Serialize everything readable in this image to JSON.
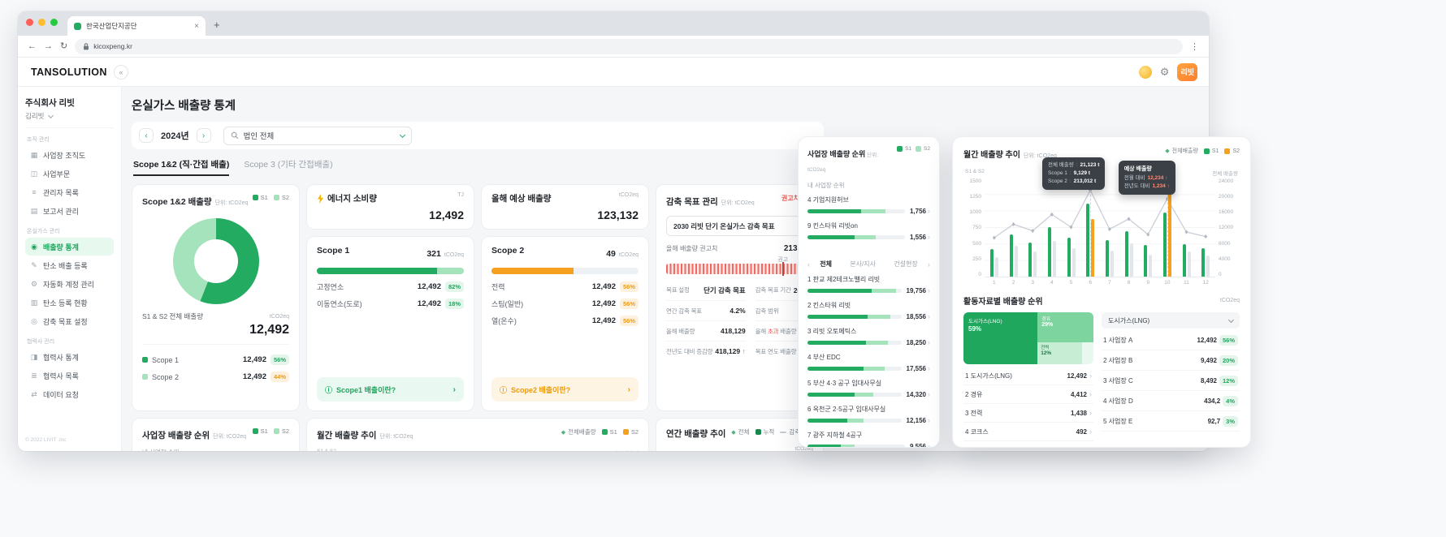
{
  "colors": {
    "green": "#23AC61",
    "green_light": "#A5E3BC",
    "orange": "#F5A01E",
    "red": "#EF564D"
  },
  "legend_labels": {
    "total": "전체배출량",
    "s1": "S1",
    "s2": "S2"
  },
  "browser": {
    "tab_title": "한국산업단지공단",
    "url": "kicoxpeng.kr"
  },
  "header": {
    "logo": "TANSOLUTION",
    "profile_badge": "리빗"
  },
  "sidebar": {
    "company": "주식회사 리빗",
    "user": "김리빗",
    "copyright": "© 2022 LIVIT .Inc",
    "sections": [
      {
        "label": "조직 관리",
        "items": [
          {
            "label": "사업장 조직도",
            "icon": "org-chart-icon",
            "active": false
          },
          {
            "label": "사업부문",
            "icon": "business-division-icon",
            "active": false
          },
          {
            "label": "관리자 목록",
            "icon": "admin-list-icon",
            "active": false
          },
          {
            "label": "보고서 관리",
            "icon": "report-icon",
            "active": false
          }
        ]
      },
      {
        "label": "온실가스 관리",
        "items": [
          {
            "label": "배출량 통계",
            "icon": "stats-chart-icon",
            "active": true
          },
          {
            "label": "탄소 배출 등록",
            "icon": "pencil-icon",
            "active": false
          },
          {
            "label": "자동화 계정 관리",
            "icon": "gear-icon",
            "active": false
          },
          {
            "label": "탄소 등록 현황",
            "icon": "carbon-status-icon",
            "active": false
          },
          {
            "label": "감축 목표 설정",
            "icon": "target-icon",
            "active": false
          }
        ]
      },
      {
        "label": "협력사 관리",
        "items": [
          {
            "label": "협력사 통계",
            "icon": "partner-stats-icon",
            "active": false
          },
          {
            "label": "협력사 목록",
            "icon": "partner-list-icon",
            "active": false
          },
          {
            "label": "데이터 요청",
            "icon": "data-request-icon",
            "active": false
          }
        ]
      }
    ]
  },
  "page": {
    "title": "온실가스 배출량 통계",
    "year": "2024년",
    "filter_value": "법인 전체",
    "tabs": [
      {
        "label": "Scope 1&2 (직·간접 배출)",
        "active": true
      },
      {
        "label": "Scope 3 (기타 간접배출)",
        "active": false
      }
    ]
  },
  "scope12_card": {
    "title": "Scope 1&2 배출량",
    "unit_label": "단위: tCO2eq",
    "total_label": "S1 & S2 전체 배출량",
    "total_unit": "tCO2eq",
    "total_value": "12,492",
    "rows": [
      {
        "label": "Scope 1",
        "value": "12,492",
        "pct": "56%",
        "sq": "g",
        "badge": "bg"
      },
      {
        "label": "Scope 2",
        "value": "12,492",
        "pct": "44%",
        "sq": "gl",
        "badge": "bo"
      }
    ],
    "chart_data": {
      "type": "pie",
      "labels": [
        "Scope 1",
        "Scope 2"
      ],
      "values": [
        56,
        44
      ]
    }
  },
  "energy_card": {
    "title": "에너지 소비량",
    "unit": "TJ",
    "value": "12,492"
  },
  "scope1_card": {
    "title": "Scope 1",
    "value": "321",
    "unit": "tCO2eq",
    "bar": [
      82,
      18
    ],
    "rows": [
      {
        "label": "고정연소",
        "value": "12,492",
        "pct": "82%"
      },
      {
        "label": "이동연소(도로)",
        "value": "12,492",
        "pct": "18%"
      }
    ],
    "info": "Scope1 배출이란?"
  },
  "forecast_card": {
    "title": "올해 예상 배출량",
    "unit": "tCO2eq",
    "value": "123,132"
  },
  "scope2_card": {
    "title": "Scope 2",
    "value": "49",
    "unit": "tCO2eq",
    "bar": 56,
    "rows": [
      {
        "label": "전력",
        "value": "12,492",
        "pct": "56%"
      },
      {
        "label": "스팀(일반)",
        "value": "12,492",
        "pct": "56%"
      },
      {
        "label": "열(온수)",
        "value": "12,492",
        "pct": "56%"
      }
    ],
    "info": "Scope2 배출이란?"
  },
  "target_card": {
    "title": "감축 목표 관리",
    "unit_label": "단위: tCO2eq",
    "alert": "권고치 초과",
    "select_value": "2030 리빗 단기 온실가스 감축 목표",
    "rec_label": "올해 배출량 권고치",
    "rec_value": "213,132",
    "rec_marker": "권고",
    "stats": [
      {
        "label": "목표 설정",
        "value": "단기 감축 목표"
      },
      {
        "label": "감축 목표 기간",
        "value": "2015 - 2050"
      },
      {
        "label": "연간 감축 목표",
        "value": "4.2%"
      },
      {
        "label": "감축 범위",
        "value": "Scope 1"
      },
      {
        "label": "올해 배출량",
        "value": "418,129"
      },
      {
        "label": "올해 초과 배출량",
        "value": "7,351",
        "red_word": "초과"
      },
      {
        "label": "전년도 대비 증감량",
        "value": "418,129",
        "arrow": "↑"
      },
      {
        "label": "목표 연도 배출량",
        "value": "8,129"
      }
    ]
  },
  "bottom_cards": {
    "site_rank": {
      "title": "사업장 배출량 순위",
      "unit_label": "단위: tCO2eq",
      "sub": "내 사업장 순위"
    },
    "monthly": {
      "title": "월간 배출량 추이",
      "unit_label": "단위: tCO2eq",
      "axis_left": "S1 & S2",
      "axis_right": "전체 배출량"
    },
    "yearly": {
      "title": "연간 배출량 추이",
      "legend_a": "전체",
      "legend_b": "누적",
      "legend_c": "감축 목표",
      "unit": "tCO2eq"
    }
  },
  "site_rank_panel": {
    "title": "사업장 배출량 순위",
    "unit_label": "단위: tCO2eq",
    "my_label": "내 사업장 순위",
    "my_items": [
      {
        "rank": "4",
        "name": "기업지원허브",
        "value": "1,756",
        "s1": 55,
        "s2": 25
      },
      {
        "rank": "9",
        "name": "킨스타워 리빗on",
        "value": "1,556",
        "s1": 48,
        "s2": 22
      }
    ],
    "tabs": [
      {
        "label": "전체",
        "active": true
      },
      {
        "label": "본사/지사",
        "active": false
      },
      {
        "label": "건설현장",
        "active": false
      }
    ],
    "items": [
      {
        "rank": "1",
        "name": "판교 제2테크노밸리 리빗",
        "value": "19,756",
        "s1": 68,
        "s2": 26
      },
      {
        "rank": "2",
        "name": "킨스타워 리빗",
        "value": "18,556",
        "s1": 64,
        "s2": 24
      },
      {
        "rank": "3",
        "name": "리빗 오토메틱스",
        "value": "18,250",
        "s1": 62,
        "s2": 24
      },
      {
        "rank": "4",
        "name": "부산 EDC",
        "value": "17,556",
        "s1": 60,
        "s2": 22
      },
      {
        "rank": "5",
        "name": "부산 4·3 공구 임대사무실",
        "value": "14,320",
        "s1": 50,
        "s2": 20
      },
      {
        "rank": "6",
        "name": "옥천군 2·5공구 임대사무실",
        "value": "12,156",
        "s1": 42,
        "s2": 18
      },
      {
        "rank": "7",
        "name": "광주 지하철 4공구",
        "value": "9,556",
        "s1": 34,
        "s2": 14
      },
      {
        "rank": "8",
        "name": "김포 파주도로 4공구 임대사무실",
        "value": "9,326",
        "s1": 32,
        "s2": 13
      }
    ]
  },
  "monthly_panel": {
    "title": "월간 배출량 추이",
    "unit_label": "단위: tCO2eq",
    "axis_left_title": "S1 & S2",
    "axis_right_title": "전체 배출량",
    "tooltip_total": {
      "rows": [
        [
          "전체 배출량",
          "21,123 t"
        ],
        [
          "Scope 1",
          "9,129 t"
        ],
        [
          "Scope 2",
          "213,012 t"
        ]
      ]
    },
    "tooltip_forecast": {
      "title": "예상 배출량",
      "rows": [
        [
          "전월 대비",
          "12,234 ↑"
        ],
        [
          "전년도 대비",
          "1,234 ↑"
        ]
      ]
    },
    "chart_data": {
      "type": "bar+line",
      "x": [
        1,
        2,
        3,
        4,
        5,
        6,
        7,
        8,
        9,
        10,
        11,
        12
      ],
      "series": [
        {
          "name": "S1",
          "color": "#23AC61",
          "values": [
            420,
            640,
            520,
            760,
            600,
            1120,
            560,
            700,
            480,
            980,
            500,
            440
          ]
        },
        {
          "name": "S2",
          "color": "#F5A01E",
          "values": [
            300,
            470,
            380,
            550,
            430,
            880,
            400,
            510,
            340,
            1260,
            380,
            320
          ]
        },
        {
          "name": "전체배출량",
          "color": "#C9CED6",
          "values": [
            9500,
            12800,
            11200,
            15200,
            12100,
            21123,
            11600,
            14100,
            10300,
            19000,
            10900,
            9800
          ]
        }
      ],
      "ylim_left": [
        0,
        1500
      ],
      "yticks_left": [
        1500,
        1250,
        1000,
        750,
        500,
        250,
        0
      ],
      "ylim_right": [
        0,
        24000
      ],
      "yticks_right": [
        24000,
        20000,
        16000,
        12000,
        8000,
        4000,
        0
      ],
      "highlight_months": [
        6,
        10
      ],
      "legend_position": "top-right",
      "grid": true
    }
  },
  "activity_panel": {
    "title": "활동자료별 배출량 순위",
    "unit": "tCO2eq",
    "select_value": "도시가스(LNG)",
    "treemap": [
      {
        "label": "도시가스(LNG)",
        "pct": "59%",
        "share": 59
      },
      {
        "label": "경유",
        "pct": "29%",
        "share": 29
      },
      {
        "label": "전력",
        "pct": "12%",
        "share": 12
      }
    ],
    "fuel_list": [
      {
        "rank": "1",
        "name": "도시가스(LNG)",
        "value": "12,492"
      },
      {
        "rank": "2",
        "name": "경유",
        "value": "4,412"
      },
      {
        "rank": "3",
        "name": "전력",
        "value": "1,438"
      },
      {
        "rank": "4",
        "name": "코크스",
        "value": "492"
      }
    ],
    "site_list": [
      {
        "rank": "1",
        "name": "사업장 A",
        "value": "12,492",
        "pct": "56%"
      },
      {
        "rank": "2",
        "name": "사업장 B",
        "value": "9,492",
        "pct": "20%"
      },
      {
        "rank": "3",
        "name": "사업장 C",
        "value": "8,492",
        "pct": "12%"
      },
      {
        "rank": "4",
        "name": "사업장 D",
        "value": "434,2",
        "pct": "4%"
      },
      {
        "rank": "5",
        "name": "사업장 E",
        "value": "92,7",
        "pct": "3%"
      }
    ]
  }
}
